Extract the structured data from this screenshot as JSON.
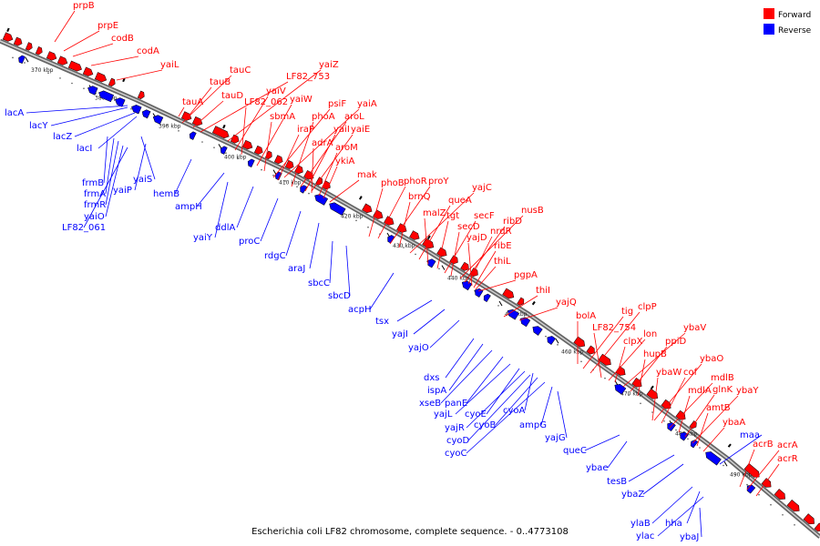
{
  "caption": "Escherichia coli LF82 chromosome, complete sequence. - 0..4773108",
  "legend": [
    {
      "label": "Forward",
      "color": "#ff0000"
    },
    {
      "label": "Reverse",
      "color": "#0000ff"
    }
  ],
  "colors": {
    "forward": "#ff0000",
    "reverse": "#0000ff",
    "backbone": "#888888"
  },
  "ticks": [
    "370 kbp",
    "380 kbp",
    "390 kbp",
    "400 kbp",
    "410 kbp",
    "420 kbp",
    "430 kbp",
    "440 kbp",
    "450 kbp",
    "460 kbp",
    "470 kbp",
    "480 kbp",
    "490 kbp"
  ],
  "forward_labels": [
    "prpB",
    "prpE",
    "codB",
    "codA",
    "yaiL",
    "tauA",
    "tauC",
    "tauB",
    "tauD",
    "LF82_753",
    "yaiZ",
    "yaiV",
    "LF82_062",
    "yaiW",
    "sbmA",
    "psiF",
    "yaiA",
    "iraP",
    "phoA",
    "aroL",
    "yaiI",
    "yaiE",
    "adrA",
    "aroM",
    "ykiA",
    "mak",
    "phoB",
    "phoR",
    "proY",
    "brnQ",
    "yajC",
    "queA",
    "malZ",
    "tgt",
    "secF",
    "secD",
    "nusB",
    "ribD",
    "nrdR",
    "yajD",
    "ribE",
    "thiL",
    "pgpA",
    "thiI",
    "yajQ",
    "bolA",
    "tig",
    "clpP",
    "LF82_754",
    "lon",
    "clpX",
    "ybaV",
    "ppiD",
    "hupB",
    "ybaO",
    "ybaW",
    "cof",
    "mdlB",
    "mdlA",
    "glnK",
    "ybaY",
    "amtB",
    "ybaA",
    "acrB",
    "acrA",
    "acrR"
  ],
  "reverse_labels": [
    "lacA",
    "lacY",
    "lacZ",
    "lacI",
    "frmB",
    "frmA",
    "yaiS",
    "frmR",
    "yaiP",
    "yaiO",
    "LF82_061",
    "hemB",
    "ampH",
    "ddlA",
    "yaiY",
    "proC",
    "rdgC",
    "araJ",
    "sbcC",
    "sbcD",
    "acpH",
    "tsx",
    "yajI",
    "yajO",
    "dxs",
    "ispA",
    "xseB",
    "panE",
    "yajL",
    "cyoE",
    "yajR",
    "cyoA",
    "cyoD",
    "cyoB",
    "cyoC",
    "ampG",
    "yajG",
    "queC",
    "ybae",
    "maa",
    "tesB",
    "ybaZ",
    "ylaB",
    "hha",
    "ylac",
    "ybaJ"
  ]
}
